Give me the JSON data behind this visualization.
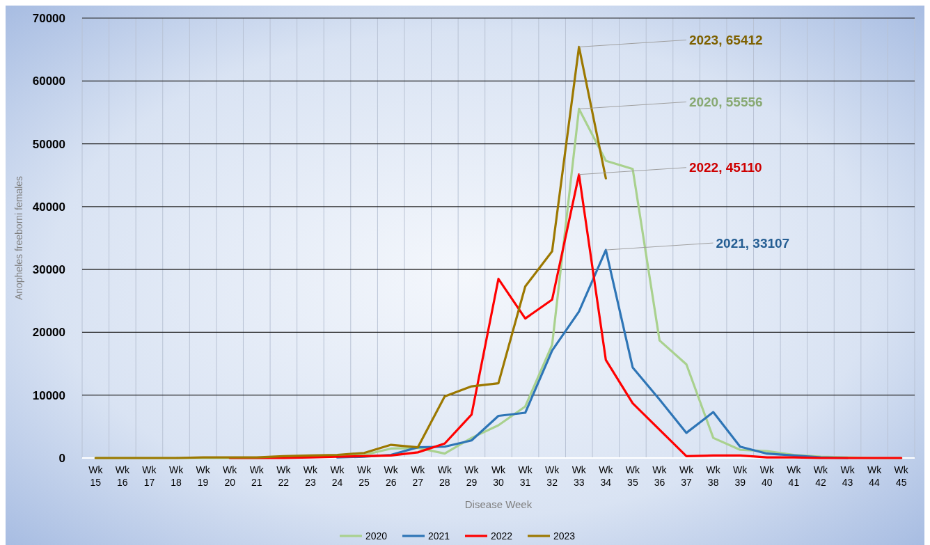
{
  "chart_data": {
    "type": "line",
    "xlabel": "Disease Week",
    "ylabel": "Anopheles freeborni females",
    "categories": [
      "Wk 15",
      "Wk 16",
      "Wk 17",
      "Wk 18",
      "Wk 19",
      "Wk 20",
      "Wk 21",
      "Wk 22",
      "Wk 23",
      "Wk 24",
      "Wk 25",
      "Wk 26",
      "Wk 27",
      "Wk 28",
      "Wk 29",
      "Wk 30",
      "Wk 31",
      "Wk 32",
      "Wk 33",
      "Wk 34",
      "Wk 35",
      "Wk 36",
      "Wk 37",
      "Wk 38",
      "Wk 39",
      "Wk 40",
      "Wk 41",
      "Wk 42",
      "Wk 43",
      "Wk 44",
      "Wk 45"
    ],
    "series": [
      {
        "name": "2020",
        "color": "#a9d18e",
        "values": [
          0,
          0,
          0,
          0,
          0,
          0,
          0,
          100,
          200,
          300,
          500,
          1500,
          1600,
          700,
          3200,
          5200,
          8200,
          18000,
          55556,
          47300,
          46000,
          18700,
          14900,
          3200,
          1300,
          1100,
          500,
          200,
          100,
          0,
          0
        ]
      },
      {
        "name": "2021",
        "color": "#2e75b6",
        "values": [
          null,
          null,
          null,
          null,
          null,
          null,
          null,
          null,
          null,
          100,
          200,
          500,
          1700,
          1800,
          2800,
          6700,
          7200,
          17100,
          23300,
          33107,
          14400,
          9300,
          4000,
          7300,
          1800,
          700,
          400,
          100,
          0,
          null,
          null
        ]
      },
      {
        "name": "2022",
        "color": "#ff0000",
        "values": [
          null,
          null,
          null,
          null,
          null,
          0,
          0,
          0,
          100,
          200,
          300,
          400,
          900,
          2300,
          6900,
          28500,
          22200,
          25200,
          45110,
          15600,
          8700,
          4500,
          300,
          400,
          400,
          100,
          100,
          0,
          0,
          0,
          0
        ]
      },
      {
        "name": "2023",
        "color": "#9c7800",
        "values": [
          0,
          0,
          0,
          0,
          100,
          100,
          100,
          300,
          400,
          500,
          800,
          2100,
          1700,
          9800,
          11400,
          11900,
          27300,
          32900,
          65412,
          44500,
          null,
          null,
          null,
          null,
          null,
          null,
          null,
          null,
          null,
          null,
          null
        ]
      }
    ],
    "annotations": [
      {
        "text": "2023, 65412",
        "x": "Wk 33",
        "y": 65412
      },
      {
        "text": "2020, 55556",
        "x": "Wk 33",
        "y": 55556
      },
      {
        "text": "2022, 45110",
        "x": "Wk 33",
        "y": 45110
      },
      {
        "text": "2021, 33107",
        "x": "Wk 34",
        "y": 33107
      }
    ],
    "ylim": [
      0,
      70000
    ],
    "yticks": [
      0,
      10000,
      20000,
      30000,
      40000,
      50000,
      60000,
      70000
    ],
    "grid": true,
    "legend": "bottom",
    "marker": "none",
    "line_style": "solid"
  }
}
